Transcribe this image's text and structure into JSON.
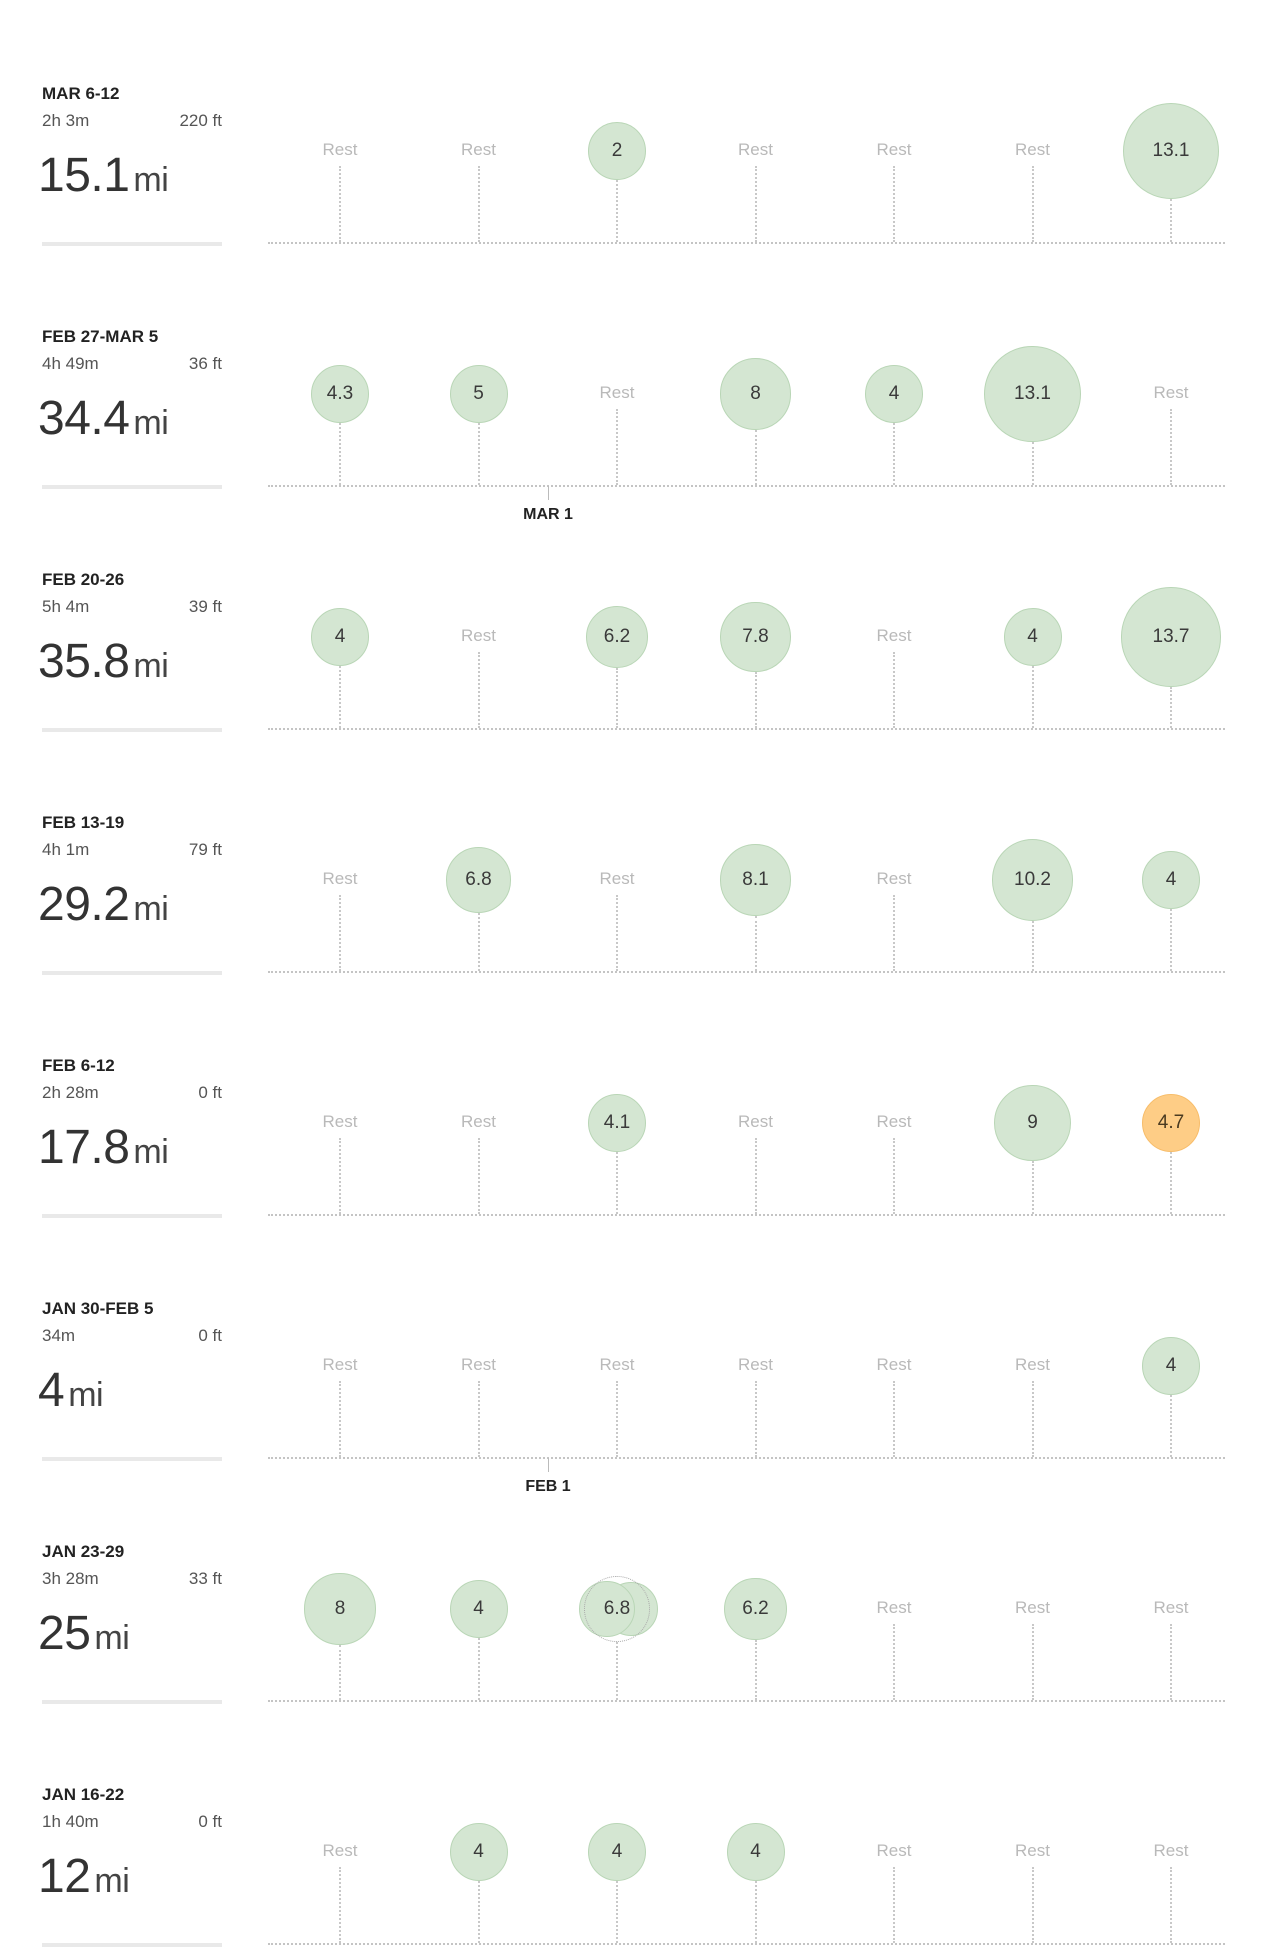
{
  "weeks": [
    {
      "range": "MAR 6-12",
      "duration": "2h 3m",
      "elevation": "220 ft",
      "distance": "15.1",
      "unit": "mi",
      "days": [
        {
          "type": "rest",
          "label": "Rest"
        },
        {
          "type": "rest",
          "label": "Rest"
        },
        {
          "type": "run",
          "miles": 2,
          "label": "2"
        },
        {
          "type": "rest",
          "label": "Rest"
        },
        {
          "type": "rest",
          "label": "Rest"
        },
        {
          "type": "rest",
          "label": "Rest"
        },
        {
          "type": "run",
          "miles": 13.1,
          "label": "13.1"
        }
      ]
    },
    {
      "range": "FEB 27-MAR 5",
      "duration": "4h 49m",
      "elevation": "36 ft",
      "distance": "34.4",
      "unit": "mi",
      "days": [
        {
          "type": "run",
          "miles": 4.3,
          "label": "4.3"
        },
        {
          "type": "run",
          "miles": 5,
          "label": "5"
        },
        {
          "type": "rest",
          "label": "Rest"
        },
        {
          "type": "run",
          "miles": 8,
          "label": "8"
        },
        {
          "type": "run",
          "miles": 4,
          "label": "4"
        },
        {
          "type": "run",
          "miles": 13.1,
          "label": "13.1"
        },
        {
          "type": "rest",
          "label": "Rest"
        }
      ]
    },
    {
      "range": "FEB 20-26",
      "duration": "5h 4m",
      "elevation": "39 ft",
      "distance": "35.8",
      "unit": "mi",
      "days": [
        {
          "type": "run",
          "miles": 4,
          "label": "4"
        },
        {
          "type": "rest",
          "label": "Rest"
        },
        {
          "type": "run",
          "miles": 6.2,
          "label": "6.2"
        },
        {
          "type": "run",
          "miles": 7.8,
          "label": "7.8"
        },
        {
          "type": "rest",
          "label": "Rest"
        },
        {
          "type": "run",
          "miles": 4,
          "label": "4"
        },
        {
          "type": "run",
          "miles": 13.7,
          "label": "13.7"
        }
      ]
    },
    {
      "range": "FEB 13-19",
      "duration": "4h 1m",
      "elevation": "79 ft",
      "distance": "29.2",
      "unit": "mi",
      "days": [
        {
          "type": "rest",
          "label": "Rest"
        },
        {
          "type": "run",
          "miles": 6.8,
          "label": "6.8"
        },
        {
          "type": "rest",
          "label": "Rest"
        },
        {
          "type": "run",
          "miles": 8.1,
          "label": "8.1"
        },
        {
          "type": "rest",
          "label": "Rest"
        },
        {
          "type": "run",
          "miles": 10.2,
          "label": "10.2"
        },
        {
          "type": "run",
          "miles": 4,
          "label": "4"
        }
      ]
    },
    {
      "range": "FEB 6-12",
      "duration": "2h 28m",
      "elevation": "0 ft",
      "distance": "17.8",
      "unit": "mi",
      "days": [
        {
          "type": "rest",
          "label": "Rest"
        },
        {
          "type": "rest",
          "label": "Rest"
        },
        {
          "type": "run",
          "miles": 4.1,
          "label": "4.1"
        },
        {
          "type": "rest",
          "label": "Rest"
        },
        {
          "type": "rest",
          "label": "Rest"
        },
        {
          "type": "run",
          "miles": 9,
          "label": "9"
        },
        {
          "type": "run",
          "miles": 4.7,
          "label": "4.7",
          "highlight": true
        }
      ]
    },
    {
      "range": "JAN 30-FEB 5",
      "duration": "34m",
      "elevation": "0 ft",
      "distance": "4",
      "unit": "mi",
      "days": [
        {
          "type": "rest",
          "label": "Rest"
        },
        {
          "type": "rest",
          "label": "Rest"
        },
        {
          "type": "rest",
          "label": "Rest"
        },
        {
          "type": "rest",
          "label": "Rest"
        },
        {
          "type": "rest",
          "label": "Rest"
        },
        {
          "type": "rest",
          "label": "Rest"
        },
        {
          "type": "run",
          "miles": 4,
          "label": "4"
        }
      ]
    },
    {
      "range": "JAN 23-29",
      "duration": "3h 28m",
      "elevation": "33 ft",
      "distance": "25",
      "unit": "mi",
      "days": [
        {
          "type": "run",
          "miles": 8,
          "label": "8"
        },
        {
          "type": "run",
          "miles": 4,
          "label": "4"
        },
        {
          "type": "run",
          "miles": 6.8,
          "label": "6.8",
          "multiple": true
        },
        {
          "type": "run",
          "miles": 6.2,
          "label": "6.2"
        },
        {
          "type": "rest",
          "label": "Rest"
        },
        {
          "type": "rest",
          "label": "Rest"
        },
        {
          "type": "rest",
          "label": "Rest"
        }
      ]
    },
    {
      "range": "JAN 16-22",
      "duration": "1h 40m",
      "elevation": "0 ft",
      "distance": "12",
      "unit": "mi",
      "days": [
        {
          "type": "rest",
          "label": "Rest"
        },
        {
          "type": "run",
          "miles": 4,
          "label": "4"
        },
        {
          "type": "run",
          "miles": 4,
          "label": "4"
        },
        {
          "type": "run",
          "miles": 4,
          "label": "4"
        },
        {
          "type": "rest",
          "label": "Rest"
        },
        {
          "type": "rest",
          "label": "Rest"
        },
        {
          "type": "rest",
          "label": "Rest"
        }
      ]
    }
  ],
  "month_markers": [
    {
      "label": "MAR 1",
      "after_week": 1,
      "day_fraction": 2
    },
    {
      "label": "FEB 1",
      "after_week": 5,
      "day_fraction": 2
    }
  ]
}
